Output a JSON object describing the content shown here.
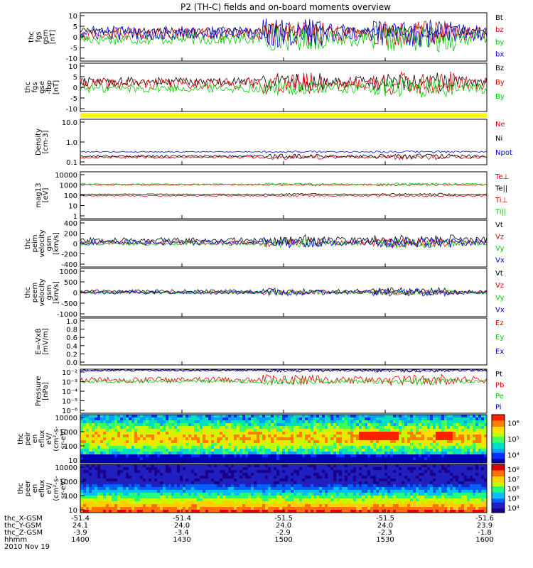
{
  "title": "P2 (TH-C) fields and on-board moments overview",
  "colors": {
    "black": "#000000",
    "red": "#dd0000",
    "green": "#00cc00",
    "blue": "#0000dd",
    "yellow": "#ffff00"
  },
  "chart_data": [
    {
      "type": "line",
      "ylabel": [
        "thc",
        "fgs",
        "gsm",
        "[nT]"
      ],
      "ticks": [
        10,
        5,
        0,
        -5,
        -10
      ],
      "ylim": [
        -12,
        12
      ],
      "series": [
        {
          "name": "Bt",
          "color": "black",
          "base": 3,
          "amp": 1.5
        },
        {
          "name": "bz",
          "color": "red",
          "base": 1.5,
          "amp": 2.5
        },
        {
          "name": "by",
          "color": "green",
          "base": -1,
          "amp": 2.5
        },
        {
          "name": "bx",
          "color": "blue",
          "base": 2,
          "amp": 3
        }
      ]
    },
    {
      "type": "line",
      "ylabel": [
        "thc",
        "fgs",
        "gse",
        "-fbp",
        "[nT]"
      ],
      "ticks": [
        10,
        5,
        0,
        -5,
        -10
      ],
      "ylim": [
        -14,
        12
      ],
      "series": [
        {
          "name": "Bz",
          "color": "black",
          "base": 2,
          "amp": 2
        },
        {
          "name": "By",
          "color": "red",
          "base": 1,
          "amp": 2.5
        },
        {
          "name": "By",
          "color": "green",
          "base": -1.5,
          "amp": 2
        }
      ]
    },
    {
      "type": "line",
      "scale": "log",
      "ylabel": [
        "Density",
        "[cm-3]"
      ],
      "ticks": [
        "10.0",
        "1.0",
        "0.1"
      ],
      "ylim": [
        0.1,
        13
      ],
      "series": [
        {
          "name": "Ne",
          "color": "red",
          "base": 0.22,
          "amp": 0.1
        },
        {
          "name": "Ni",
          "color": "black",
          "base": 0.25,
          "amp": 0.1
        },
        {
          "name": "Npot",
          "color": "blue",
          "base": 0.4,
          "amp": 0.05
        }
      ]
    },
    {
      "type": "line",
      "scale": "log",
      "ylabel": [
        "mag13",
        "[eV]"
      ],
      "ticks": [
        "10000",
        "1000",
        "100",
        "10",
        "1"
      ],
      "ylim": [
        1,
        12000
      ],
      "series": [
        {
          "name": "Te⊥",
          "color": "red",
          "base": 100,
          "amp": 0.1
        },
        {
          "name": "Te||",
          "color": "black",
          "base": 130,
          "amp": 0.1
        },
        {
          "name": "Ti⊥",
          "color": "red",
          "base": 900,
          "amp": 0.1
        },
        {
          "name": "Ti||",
          "color": "green",
          "base": 1000,
          "amp": 0.1
        }
      ]
    },
    {
      "type": "line",
      "ylabel": [
        "thc",
        "peim",
        "velocity",
        "gsm",
        "[km/s]"
      ],
      "ticks": [
        400,
        200,
        0,
        -200,
        -400
      ],
      "ylim": [
        -420,
        420
      ],
      "series": [
        {
          "name": "Vt",
          "color": "black",
          "base": 60,
          "amp": 40
        },
        {
          "name": "Vz",
          "color": "red",
          "base": 10,
          "amp": 30
        },
        {
          "name": "Vy",
          "color": "green",
          "base": 0,
          "amp": 30
        },
        {
          "name": "Vx",
          "color": "blue",
          "base": 20,
          "amp": 40
        }
      ]
    },
    {
      "type": "line",
      "ylabel": [
        "thc",
        "peem",
        "velocity",
        "gsm",
        "[km/s]"
      ],
      "ticks": [
        1000,
        500,
        0,
        -500,
        -1000
      ],
      "ylim": [
        -1050,
        1050
      ],
      "series": [
        {
          "name": "Vt",
          "color": "black",
          "base": 60,
          "amp": 60
        },
        {
          "name": "Vz",
          "color": "red",
          "base": 0,
          "amp": 40
        },
        {
          "name": "Vy",
          "color": "green",
          "base": 0,
          "amp": 40
        },
        {
          "name": "Vx",
          "color": "blue",
          "base": 0,
          "amp": 60
        }
      ]
    },
    {
      "type": "line",
      "ylabel": [
        "E=-VxB",
        "[mV/m]"
      ],
      "ticks": [
        "1.0",
        "0.8",
        "0.6",
        "0.4",
        "0.2",
        "0.0"
      ],
      "ylim": [
        0,
        1
      ],
      "series": [
        {
          "name": "Ez",
          "color": "red"
        },
        {
          "name": "Ey",
          "color": "green"
        },
        {
          "name": "Ex",
          "color": "blue"
        }
      ]
    },
    {
      "type": "line",
      "scale": "log",
      "ylabel": [
        "Pressure",
        "[nPa]"
      ],
      "ticks": [
        "10⁻²",
        "10⁻³",
        "10⁻⁴",
        "10⁻⁵",
        "10⁻⁶"
      ],
      "ylim": [
        1e-06,
        0.012
      ],
      "series": [
        {
          "name": "Pt",
          "color": "black",
          "base": 0.01,
          "amp": 0.2
        },
        {
          "name": "Pb",
          "color": "red",
          "base": 0.0012,
          "amp": 0.5
        },
        {
          "name": "Pe",
          "color": "green",
          "base": 0.0009,
          "amp": 0.3
        },
        {
          "name": "Pi",
          "color": "blue",
          "base": 0.009,
          "amp": 0.15
        }
      ]
    },
    {
      "type": "heatmap",
      "ylabel": [
        "thc",
        "peir",
        "en",
        "eflux",
        "eV/",
        "(cm²-s-",
        "sr-eV)"
      ],
      "ticks": [
        "10000",
        "1000",
        "100",
        "10"
      ],
      "colorbar_ticks": [
        "10⁶",
        "10⁵",
        "10⁴"
      ]
    },
    {
      "type": "heatmap",
      "ylabel": [
        "thc",
        "peer",
        "en",
        "eflux",
        "eV/",
        "(cm²-s-",
        "sr-eV)"
      ],
      "ticks": [
        "10000",
        "1000",
        "100",
        "10"
      ],
      "colorbar_ticks": [
        "10⁸",
        "10⁷",
        "10⁶",
        "10⁵",
        "10⁴"
      ]
    }
  ],
  "xaxis": {
    "rows": [
      {
        "label": "thc_X-GSM",
        "values": [
          "-51.4",
          "-51.4",
          "-51.5",
          "-51.5",
          "-51.6"
        ]
      },
      {
        "label": "thc_Y-GSM",
        "values": [
          "24.1",
          "24.0",
          "24.0",
          "24.0",
          "23.9"
        ]
      },
      {
        "label": "thc_Z-GSM",
        "values": [
          "-3.9",
          "-3.4",
          "-2.9",
          "-2.3",
          "-1.8"
        ]
      },
      {
        "label": "hhmm",
        "values": [
          "1400",
          "1430",
          "1500",
          "1530",
          "1600"
        ]
      }
    ],
    "date": "2010 Nov 19"
  }
}
